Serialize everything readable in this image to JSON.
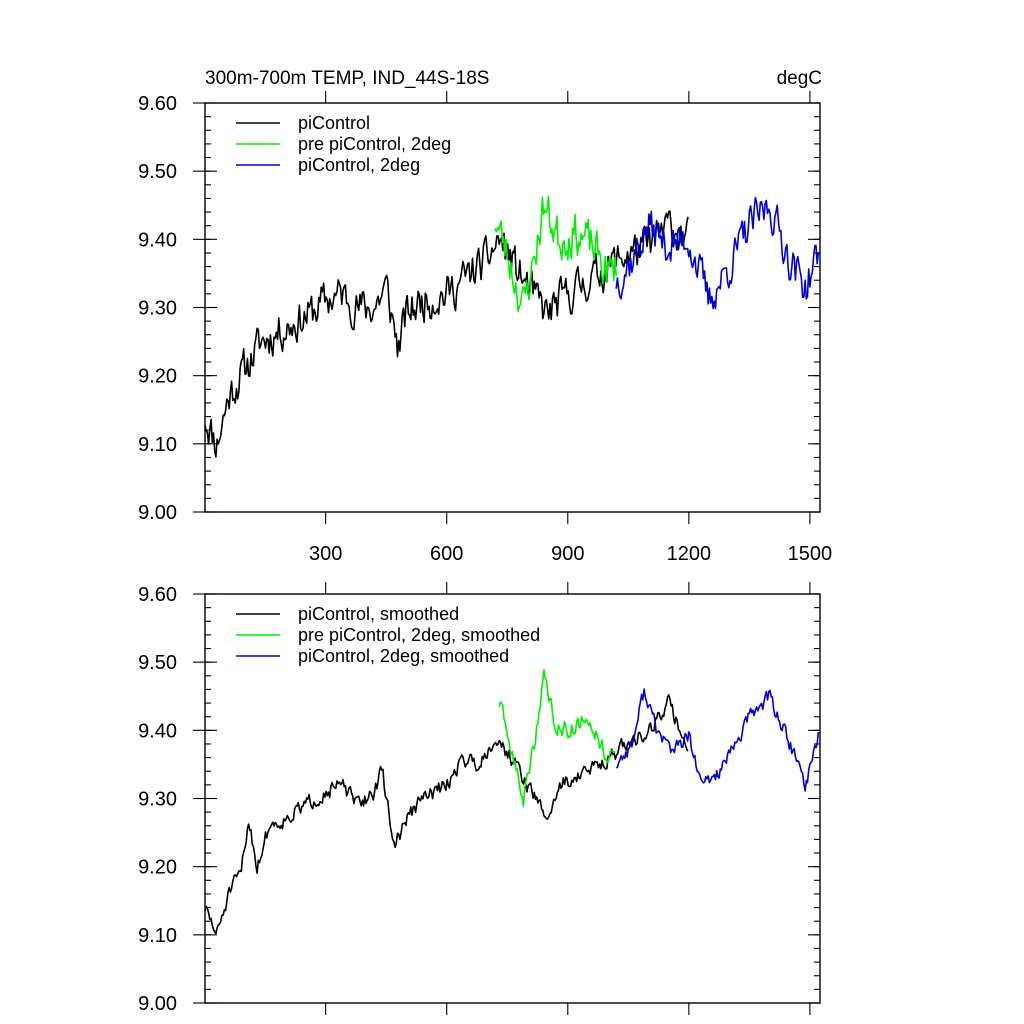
{
  "colors": {
    "picontrol": "#000000",
    "pre_picontrol_2deg": "#00ee00",
    "picontrol_2deg": "#0000dd"
  },
  "chart_data": [
    {
      "type": "line",
      "title": "300m-700m TEMP, IND_44S-18S",
      "units": "degC",
      "xlim": [
        1,
        1525
      ],
      "ylim": [
        9.0,
        9.6
      ],
      "xticks": [
        300,
        600,
        900,
        1200,
        1500
      ],
      "xtick_labels": [
        "300",
        "600",
        "900",
        "1200",
        "1500"
      ],
      "yticks": [
        9.0,
        9.1,
        9.2,
        9.3,
        9.4,
        9.5,
        9.6
      ],
      "ytick_labels": [
        "9.00",
        "9.10",
        "9.20",
        "9.30",
        "9.40",
        "9.50",
        "9.60"
      ],
      "legend_position": "top-left",
      "series": [
        {
          "name": "piControl",
          "color": "#000000",
          "x_range": [
            1,
            1200
          ],
          "knots": [
            [
              1,
              9.14
            ],
            [
              30,
              9.1
            ],
            [
              60,
              9.17
            ],
            [
              100,
              9.21
            ],
            [
              140,
              9.25
            ],
            [
              200,
              9.27
            ],
            [
              260,
              9.29
            ],
            [
              300,
              9.31
            ],
            [
              340,
              9.32
            ],
            [
              380,
              9.3
            ],
            [
              420,
              9.3
            ],
            [
              450,
              9.33
            ],
            [
              480,
              9.24
            ],
            [
              500,
              9.29
            ],
            [
              540,
              9.31
            ],
            [
              600,
              9.32
            ],
            [
              660,
              9.35
            ],
            [
              700,
              9.37
            ],
            [
              730,
              9.4
            ],
            [
              760,
              9.37
            ],
            [
              800,
              9.33
            ],
            [
              850,
              9.29
            ],
            [
              880,
              9.31
            ],
            [
              950,
              9.34
            ],
            [
              1000,
              9.36
            ],
            [
              1050,
              9.38
            ],
            [
              1100,
              9.39
            ],
            [
              1150,
              9.42
            ],
            [
              1200,
              9.4
            ]
          ],
          "noise_amplitude": 0.045,
          "seed": 11
        },
        {
          "name": "pre piControl, 2deg",
          "color": "#00ee00",
          "x_range": [
            720,
            1020
          ],
          "knots": [
            [
              720,
              9.43
            ],
            [
              760,
              9.36
            ],
            [
              790,
              9.3
            ],
            [
              820,
              9.38
            ],
            [
              840,
              9.45
            ],
            [
              880,
              9.4
            ],
            [
              920,
              9.41
            ],
            [
              960,
              9.39
            ],
            [
              1000,
              9.35
            ],
            [
              1020,
              9.36
            ]
          ],
          "noise_amplitude": 0.05,
          "seed": 23
        },
        {
          "name": "piControl, 2deg",
          "color": "#0000dd",
          "x_range": [
            1020,
            1522
          ],
          "knots": [
            [
              1020,
              9.34
            ],
            [
              1060,
              9.37
            ],
            [
              1100,
              9.42
            ],
            [
              1150,
              9.39
            ],
            [
              1200,
              9.4
            ],
            [
              1250,
              9.31
            ],
            [
              1300,
              9.36
            ],
            [
              1350,
              9.42
            ],
            [
              1400,
              9.45
            ],
            [
              1450,
              9.37
            ],
            [
              1490,
              9.33
            ],
            [
              1522,
              9.38
            ]
          ],
          "noise_amplitude": 0.045,
          "seed": 37
        }
      ]
    },
    {
      "type": "line",
      "title": "",
      "units": "",
      "xlim": [
        1,
        1525
      ],
      "ylim": [
        9.0,
        9.6
      ],
      "xticks": [
        300,
        600,
        900,
        1200,
        1500
      ],
      "xtick_labels": [],
      "yticks": [
        9.0,
        9.1,
        9.2,
        9.3,
        9.4,
        9.5,
        9.6
      ],
      "ytick_labels": [
        "9.00",
        "9.10",
        "9.20",
        "9.30",
        "9.40",
        "9.50",
        "9.60"
      ],
      "legend_position": "top-left",
      "series": [
        {
          "name": "piControl, smoothed",
          "color": "#000000",
          "x_range": [
            1,
            1200
          ],
          "knots": [
            [
              1,
              9.14
            ],
            [
              30,
              9.1
            ],
            [
              60,
              9.16
            ],
            [
              90,
              9.19
            ],
            [
              110,
              9.27
            ],
            [
              130,
              9.2
            ],
            [
              160,
              9.26
            ],
            [
              200,
              9.27
            ],
            [
              250,
              9.29
            ],
            [
              300,
              9.31
            ],
            [
              340,
              9.32
            ],
            [
              380,
              9.29
            ],
            [
              420,
              9.31
            ],
            [
              440,
              9.34
            ],
            [
              470,
              9.23
            ],
            [
              500,
              9.27
            ],
            [
              540,
              9.3
            ],
            [
              600,
              9.32
            ],
            [
              640,
              9.36
            ],
            [
              680,
              9.35
            ],
            [
              720,
              9.39
            ],
            [
              760,
              9.36
            ],
            [
              800,
              9.32
            ],
            [
              850,
              9.27
            ],
            [
              880,
              9.32
            ],
            [
              950,
              9.34
            ],
            [
              1000,
              9.36
            ],
            [
              1050,
              9.38
            ],
            [
              1100,
              9.4
            ],
            [
              1150,
              9.44
            ],
            [
              1200,
              9.37
            ]
          ],
          "noise_amplitude": 0.018,
          "seed": 51
        },
        {
          "name": "pre piControl, 2deg, smoothed",
          "color": "#00ee00",
          "x_range": [
            730,
            1020
          ],
          "knots": [
            [
              730,
              9.44
            ],
            [
              760,
              9.37
            ],
            [
              790,
              9.3
            ],
            [
              820,
              9.39
            ],
            [
              840,
              9.48
            ],
            [
              870,
              9.41
            ],
            [
              900,
              9.4
            ],
            [
              950,
              9.42
            ],
            [
              1000,
              9.36
            ],
            [
              1020,
              9.36
            ]
          ],
          "noise_amplitude": 0.02,
          "seed": 63
        },
        {
          "name": "piControl, 2deg, smoothed",
          "color": "#0000dd",
          "x_range": [
            1020,
            1522
          ],
          "knots": [
            [
              1020,
              9.35
            ],
            [
              1060,
              9.38
            ],
            [
              1090,
              9.46
            ],
            [
              1120,
              9.4
            ],
            [
              1160,
              9.37
            ],
            [
              1200,
              9.39
            ],
            [
              1230,
              9.32
            ],
            [
              1260,
              9.33
            ],
            [
              1300,
              9.36
            ],
            [
              1350,
              9.42
            ],
            [
              1400,
              9.45
            ],
            [
              1450,
              9.38
            ],
            [
              1490,
              9.32
            ],
            [
              1522,
              9.4
            ]
          ],
          "noise_amplitude": 0.018,
          "seed": 77
        }
      ]
    }
  ]
}
